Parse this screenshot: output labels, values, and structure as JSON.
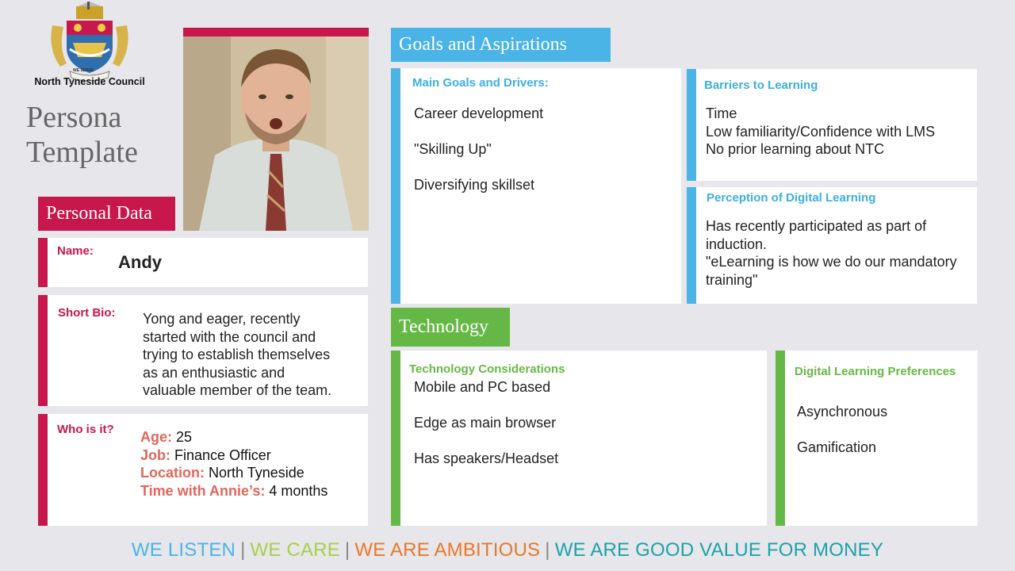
{
  "org": {
    "name": "North Tyneside Council",
    "motto": "WE SERVE"
  },
  "page_title": {
    "line1": "Persona",
    "line2": "Template"
  },
  "sections": {
    "personal": "Personal Data",
    "goals": "Goals and Aspirations",
    "technology": "Technology"
  },
  "personal": {
    "name_label": "Name:",
    "name_value": "Andy",
    "bio_label": "Short Bio:",
    "bio_lines": [
      "Yong and eager, recently",
      "started with the council and",
      "trying to establish themselves",
      "as an enthusiastic and",
      "valuable member of the team."
    ],
    "who_label": "Who is it?",
    "who": [
      {
        "key": "Age:",
        "value": " 25"
      },
      {
        "key": "Job:",
        "value": " Finance Officer"
      },
      {
        "key": "Location:",
        "value": " North Tyneside"
      },
      {
        "key": "Time with Annie’s:",
        "value": " 4 months"
      }
    ]
  },
  "goals": {
    "main_label": "Main Goals and Drivers:",
    "main_items": [
      "Career development",
      "\"Skilling Up\"",
      "Diversifying skillset"
    ],
    "barriers_label": "Barriers to Learning",
    "barriers_items": [
      "Time",
      "Low familiarity/Confidence with LMS",
      "No prior learning about NTC"
    ],
    "perception_label": "Perception of Digital Learning",
    "perception_lines": [
      "Has recently participated as part of",
      "induction.",
      "\"eLearning is how we do our mandatory",
      "training\""
    ]
  },
  "technology": {
    "considerations_label": "Technology Considerations",
    "considerations_items": [
      "Mobile and PC based",
      "Edge as main browser",
      "Has speakers/Headset"
    ],
    "preferences_label": "Digital Learning Preferences",
    "preferences_items": [
      "Asynchronous",
      "Gamification"
    ]
  },
  "footer": {
    "values": [
      {
        "text": "WE LISTEN",
        "color": "#4ab4e6"
      },
      {
        "text": "WE CARE",
        "color": "#a8d04a"
      },
      {
        "text": "WE ARE AMBITIOUS",
        "color": "#e8782a"
      },
      {
        "text": "WE ARE GOOD VALUE FOR MONEY",
        "color": "#1aa3a8"
      }
    ],
    "separator": "|"
  },
  "colors": {
    "accent_red": "#c8174d",
    "accent_blue": "#4ab4e6",
    "accent_green": "#66b846",
    "background": "#e6e6eb"
  }
}
